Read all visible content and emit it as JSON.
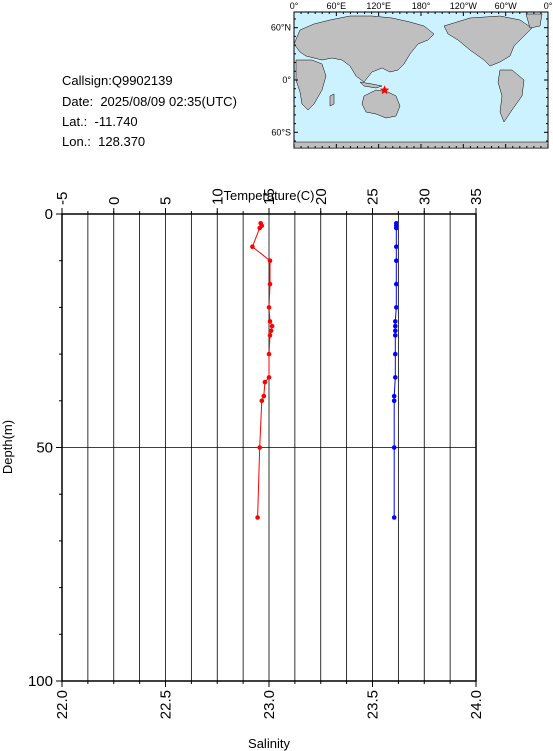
{
  "info": {
    "callsign_label": "Callsign:",
    "callsign": "Q9902139",
    "date_label": "Date:",
    "date": "2025/08/09 02:35(UTC)",
    "lat_label": "Lat.:",
    "lat": "-11.740",
    "lon_label": "Lon.:",
    "lon": "128.370"
  },
  "map": {
    "top_ticks": [
      "0°",
      "60°E",
      "120°E",
      "180°",
      "120°W",
      "60°W",
      "0°"
    ],
    "left_ticks": [
      "60°N",
      "0°",
      "60°S"
    ],
    "marker_color": "#ff0000"
  },
  "chart_data": {
    "type": "line",
    "xlabel_top": "Temperature(C)",
    "xlabel_bottom": "Salinity",
    "ylabel": "Depth(m)",
    "temperature_range": [
      -5,
      35
    ],
    "temperature_ticks": [
      -5,
      0,
      5,
      10,
      15,
      20,
      25,
      30,
      35
    ],
    "salinity_range": [
      22.0,
      24.0
    ],
    "salinity_ticks": [
      "22.0",
      "22.5",
      "23.0",
      "23.5",
      "24.0"
    ],
    "depth_range": [
      0,
      100
    ],
    "depth_ticks": [
      0,
      50,
      100
    ],
    "grid": true,
    "series": [
      {
        "color": "#ff0000",
        "axis": "temperature",
        "points": [
          [
            14.2,
            2
          ],
          [
            14.3,
            2.5
          ],
          [
            14.1,
            3
          ],
          [
            13.4,
            7
          ],
          [
            15.1,
            10
          ],
          [
            15.1,
            15
          ],
          [
            15.0,
            20
          ],
          [
            15.1,
            23
          ],
          [
            15.3,
            24
          ],
          [
            15.2,
            25
          ],
          [
            15.1,
            26
          ],
          [
            15.0,
            30
          ],
          [
            15.0,
            35
          ],
          [
            14.6,
            36
          ],
          [
            14.5,
            39
          ],
          [
            14.3,
            40
          ],
          [
            14.1,
            50
          ],
          [
            13.9,
            65
          ]
        ]
      },
      {
        "color": "#0000ff",
        "axis": "temperature",
        "points": [
          [
            27.3,
            2
          ],
          [
            27.3,
            2.5
          ],
          [
            27.3,
            3
          ],
          [
            27.3,
            7
          ],
          [
            27.3,
            10
          ],
          [
            27.3,
            15
          ],
          [
            27.3,
            20
          ],
          [
            27.2,
            23
          ],
          [
            27.2,
            24
          ],
          [
            27.2,
            25
          ],
          [
            27.2,
            26
          ],
          [
            27.2,
            30
          ],
          [
            27.2,
            35
          ],
          [
            27.1,
            39
          ],
          [
            27.1,
            40
          ],
          [
            27.1,
            50
          ],
          [
            27.1,
            65
          ]
        ]
      }
    ]
  }
}
